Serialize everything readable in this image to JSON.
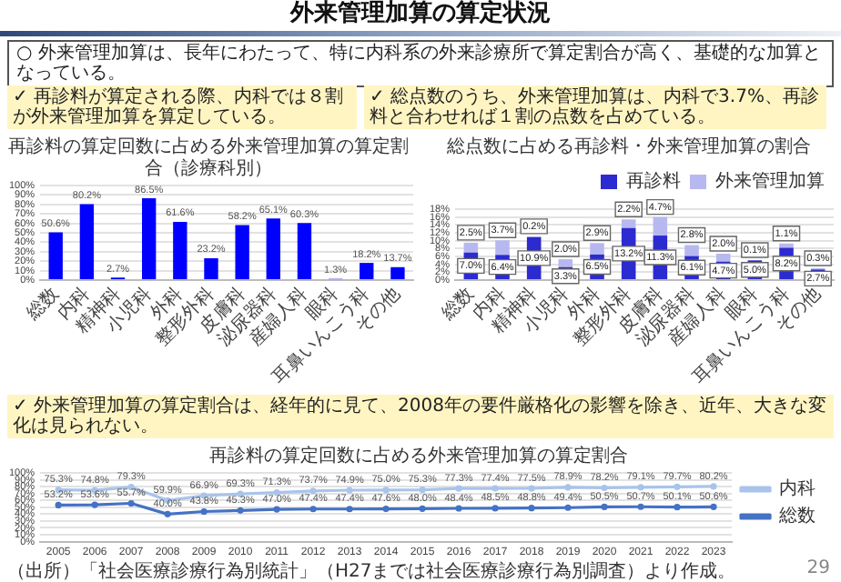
{
  "chart_data": [
    {
      "type": "other",
      "title": "外来管理加算の算定状況",
      "annotations": [
        "○ 外来管理加算は、長年にわたって、特に内科系の外来診療所で算定割合が高く、基礎的な加算となっている。",
        "29"
      ]
    },
    {
      "type": "bar",
      "title": "再診料の算定回数に占める外来管理加算の算定割合（診療科別）",
      "annotations": [
        "✓ 再診料が算定される際、内科では８割が外来管理加算を算定している。"
      ],
      "categories": [
        "総数",
        "内科",
        "精神科",
        "小児科",
        "外科",
        "整形外科",
        "皮膚科",
        "泌尿器科",
        "産婦人科",
        "眼科",
        "耳鼻いんこう科",
        "その他"
      ],
      "values": [
        50.6,
        80.2,
        2.7,
        86.5,
        61.6,
        23.2,
        58.2,
        65.1,
        60.3,
        1.3,
        18.2,
        13.7
      ],
      "value_labels": [
        "50.6%",
        "80.2%",
        "2.7%",
        "86.5%",
        "61.6%",
        "23.2%",
        "58.2%",
        "65.1%",
        "60.3%",
        "1.3%",
        "18.2%",
        "13.7%"
      ],
      "color": "#0000ff",
      "ylim": [
        0,
        100
      ],
      "yticks": [
        {
          "value": 0,
          "label": "0%"
        },
        {
          "value": 10,
          "label": "10%"
        },
        {
          "value": 20,
          "label": "20%"
        },
        {
          "value": 30,
          "label": "30%"
        },
        {
          "value": 40,
          "label": "40%"
        },
        {
          "value": 50,
          "label": "50%"
        },
        {
          "value": 60,
          "label": "60%"
        },
        {
          "value": 70,
          "label": "70%"
        },
        {
          "value": 80,
          "label": "80%"
        },
        {
          "value": 90,
          "label": "90%"
        },
        {
          "value": 100,
          "label": "100%"
        }
      ],
      "grid": "y"
    },
    {
      "type": "bar",
      "title": "総点数に占める再診料・外来管理加算の割合",
      "annotations": [
        "✓ 総点数のうち、外来管理加算は、内科で3.7%、再診料と合わせれば１割の点数を占めている。"
      ],
      "categories": [
        "総数",
        "内科",
        "精神科",
        "小児科",
        "外科",
        "整形外科",
        "皮膚科",
        "泌尿器科",
        "産婦人科",
        "眼科",
        "耳鼻いんこう科",
        "その他"
      ],
      "stacked": true,
      "series": [
        {
          "name": "再診料",
          "color": "#2b2bd0",
          "values": [
            7.0,
            6.4,
            10.9,
            3.3,
            6.5,
            13.2,
            11.3,
            6.1,
            4.7,
            5.0,
            8.2,
            2.7
          ],
          "value_labels": [
            "7.0%",
            "6.4%",
            "10.9%",
            "3.3%",
            "6.5%",
            "13.2%",
            "11.3%",
            "6.1%",
            "4.7%",
            "5.0%",
            "8.2%",
            "2.7%"
          ]
        },
        {
          "name": "外来管理加算",
          "color": "#b8b8f0",
          "values": [
            2.5,
            3.7,
            0.2,
            2.0,
            2.9,
            2.2,
            4.7,
            2.8,
            2.0,
            0.1,
            1.1,
            0.3
          ],
          "value_labels": [
            "2.5%",
            "3.7%",
            "0.2%",
            "2.0%",
            "2.9%",
            "2.2%",
            "4.7%",
            "2.8%",
            "2.0%",
            "0.1%",
            "1.1%",
            "0.3%"
          ]
        }
      ],
      "ylim": [
        0,
        18
      ],
      "yticks": [
        {
          "value": 0,
          "label": "0%"
        },
        {
          "value": 2,
          "label": "2%"
        },
        {
          "value": 4,
          "label": "4%"
        },
        {
          "value": 6,
          "label": "6%"
        },
        {
          "value": 8,
          "label": "8%"
        },
        {
          "value": 10,
          "label": "10%"
        },
        {
          "value": 12,
          "label": "12%"
        },
        {
          "value": 14,
          "label": "14%"
        },
        {
          "value": 16,
          "label": "16%"
        },
        {
          "value": 18,
          "label": "18%"
        }
      ],
      "grid": "y",
      "legend": "top right"
    },
    {
      "type": "line",
      "title": "再診料の算定回数に占める外来管理加算の算定割合",
      "annotations": [
        "✓ 外来管理加算の算定割合は、経年的に見て、2008年の要件厳格化の影響を除き、近年、大きな変化は見られない。",
        "（出所）「社会医療診療行為別統計」（H27までは社会医療診療行為別調査）より作成。"
      ],
      "categories": [
        "2005",
        "2006",
        "2007",
        "2008",
        "2009",
        "2010",
        "2011",
        "2012",
        "2013",
        "2014",
        "2015",
        "2016",
        "2017",
        "2018",
        "2019",
        "2020",
        "2021",
        "2022",
        "2023"
      ],
      "series": [
        {
          "name": "内科",
          "color": "#a9c4eb",
          "values": [
            75.3,
            74.8,
            79.3,
            59.9,
            66.9,
            69.3,
            71.3,
            73.7,
            74.9,
            75.0,
            75.3,
            77.3,
            77.4,
            77.5,
            78.9,
            78.2,
            79.1,
            79.7,
            80.2
          ],
          "value_labels": [
            "75.3%",
            "74.8%",
            "79.3%",
            "59.9%",
            "66.9%",
            "69.3%",
            "71.3%",
            "73.7%",
            "74.9%",
            "75.0%",
            "75.3%",
            "77.3%",
            "77.4%",
            "77.5%",
            "78.9%",
            "78.2%",
            "79.1%",
            "79.7%",
            "80.2%"
          ]
        },
        {
          "name": "総数",
          "color": "#4472c4",
          "values": [
            53.2,
            53.6,
            55.7,
            40.0,
            43.8,
            45.3,
            47.0,
            47.4,
            47.4,
            47.6,
            48.0,
            48.4,
            48.5,
            48.8,
            49.4,
            50.5,
            50.7,
            50.1,
            50.6
          ],
          "value_labels": [
            "53.2%",
            "53.6%",
            "55.7%",
            "40.0%",
            "43.8%",
            "45.3%",
            "47.0%",
            "47.4%",
            "47.4%",
            "47.6%",
            "48.0%",
            "48.4%",
            "48.5%",
            "48.8%",
            "49.4%",
            "50.5%",
            "50.7%",
            "50.1%",
            "50.6%"
          ]
        }
      ],
      "ylim": [
        0,
        100
      ],
      "yticks": [
        {
          "value": 0,
          "label": "0%"
        },
        {
          "value": 10,
          "label": "10%"
        },
        {
          "value": 20,
          "label": "20%"
        },
        {
          "value": 30,
          "label": "30%"
        },
        {
          "value": 40,
          "label": "40%"
        },
        {
          "value": 50,
          "label": "50%"
        },
        {
          "value": 60,
          "label": "60%"
        },
        {
          "value": 70,
          "label": "70%"
        },
        {
          "value": 80,
          "label": "80%"
        },
        {
          "value": 90,
          "label": "90%"
        },
        {
          "value": 100,
          "label": "100%"
        }
      ],
      "grid": "y",
      "legend": "right",
      "marker": "circle"
    }
  ]
}
